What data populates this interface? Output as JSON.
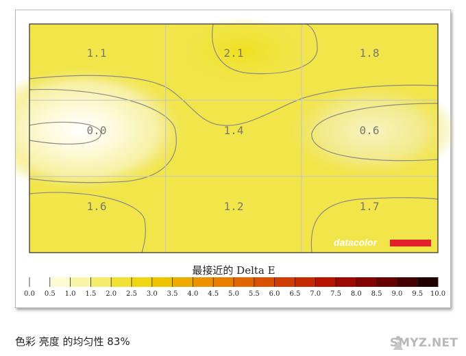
{
  "chart_data": {
    "type": "heatmap",
    "title": "最接近的 Delta E",
    "rows": 3,
    "cols": 3,
    "values": [
      [
        1.1,
        2.1,
        1.8
      ],
      [
        0.0,
        1.4,
        0.6
      ],
      [
        1.6,
        1.2,
        1.7
      ]
    ],
    "labels": [
      [
        "1.1",
        "2.1",
        "1.8"
      ],
      [
        "0.0",
        "1.4",
        "0.6"
      ],
      [
        "1.6",
        "1.2",
        "1.7"
      ]
    ],
    "scale": {
      "min": 0.0,
      "max": 10.0,
      "step": 0.5,
      "ticks": [
        "0.0",
        "0.5",
        "1.0",
        "1.5",
        "2.0",
        "2.5",
        "3.0",
        "3.5",
        "4.0",
        "4.5",
        "5.0",
        "5.5",
        "6.0",
        "6.5",
        "7.0",
        "7.5",
        "8.0",
        "8.5",
        "9.0",
        "9.5",
        "10.0"
      ],
      "colors": [
        "#ffffff",
        "#fdfbd4",
        "#f9f5a8",
        "#f4ec6c",
        "#f0e234",
        "#efd612",
        "#eec300",
        "#eeaa00",
        "#ec9200",
        "#e97d00",
        "#e06700",
        "#d85200",
        "#cf3c00",
        "#c42a00",
        "#b31500",
        "#9c0900",
        "#820400",
        "#650200",
        "#440000",
        "#200000",
        "#000000"
      ]
    },
    "grid": true,
    "brand": {
      "name": "datacolor",
      "accent": "#e2202a",
      "band_color": "#ffffff"
    }
  },
  "caption": "色彩 亮度 的均匀性 83%",
  "watermark": {
    "text": "SMYZ.NET",
    "icon": "person-silhouette-icon"
  }
}
